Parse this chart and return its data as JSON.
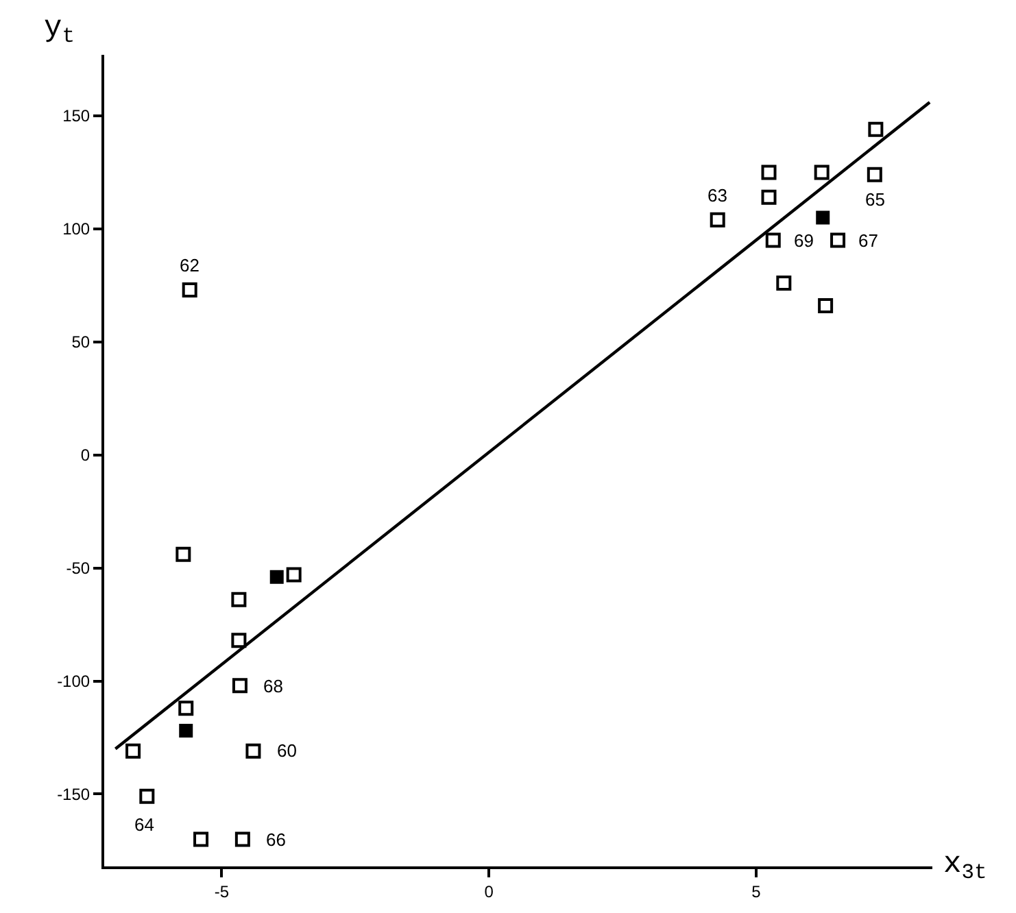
{
  "chart_data": {
    "type": "scatter",
    "xlabel": "x$_{3t}$",
    "ylabel": "y$_{t}$",
    "xlim": [
      -7.2,
      8.3
    ],
    "ylim": [
      -182,
      177
    ],
    "xticks": [
      -5,
      0,
      5
    ],
    "yticks": [
      -150,
      -100,
      -50,
      0,
      50,
      100,
      150
    ],
    "grid": false,
    "marker": "square",
    "series": [
      {
        "color": "#000000",
        "x": [
          -5.6,
          -5.72,
          -3.65,
          -4.68,
          -4.68,
          -4.66,
          -5.67,
          -6.66,
          -4.41,
          -6.4,
          -5.39,
          -4.61,
          7.24,
          5.24,
          6.23,
          7.22,
          5.24,
          4.28,
          5.32,
          6.53,
          5.52,
          6.3
        ],
        "values": [
          73,
          -44,
          -53,
          -64,
          -82,
          -102,
          -112,
          -131,
          -131,
          -151,
          -170,
          -170,
          144,
          125,
          125,
          124,
          114,
          104,
          95,
          95,
          76,
          66
        ]
      },
      {
        "color": "#000000",
        "x": [
          -3.97,
          -5.67,
          6.25
        ],
        "values": [
          -54,
          -122,
          105
        ]
      },
      {
        "type": "line",
        "color": "#000000",
        "marker": "none",
        "line_style": "solid",
        "x": [
          -6.99,
          8.25
        ],
        "values": [
          -130,
          156
        ]
      }
    ],
    "annotations": [
      {
        "text": "62",
        "x": -5.6,
        "y": 73
      },
      {
        "text": "63",
        "x": 4.28,
        "y": 104
      },
      {
        "text": "65",
        "x": 7.22,
        "y": 124
      },
      {
        "text": "69",
        "x": 5.32,
        "y": 95
      },
      {
        "text": "67",
        "x": 6.53,
        "y": 95
      },
      {
        "text": "68",
        "x": -4.66,
        "y": -102
      },
      {
        "text": "60",
        "x": -4.41,
        "y": -131
      },
      {
        "text": "64",
        "x": -6.4,
        "y": -151
      },
      {
        "text": "66",
        "x": -4.61,
        "y": -170
      }
    ]
  }
}
